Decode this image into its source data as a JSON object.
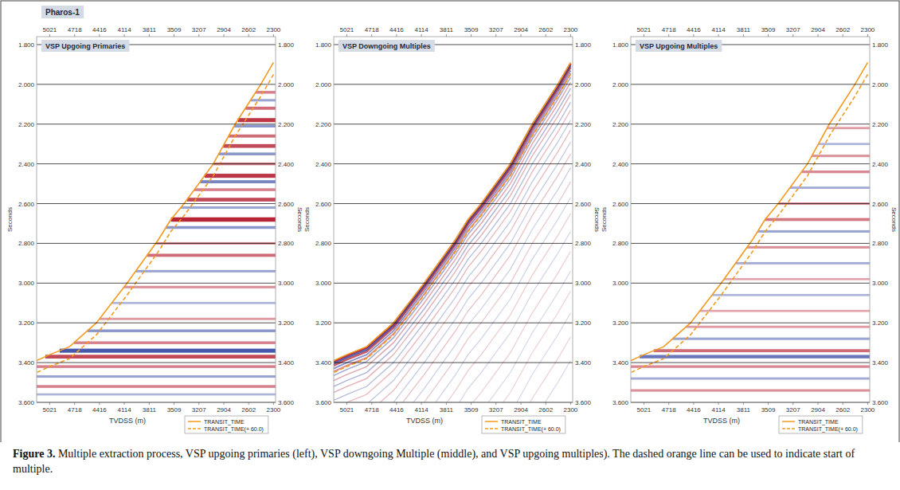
{
  "well_label": "Pharos-1",
  "caption": {
    "label": "Figure 3.",
    "text": " Multiple extraction process, VSP upgoing primaries (left), VSP downgoing Multiple (middle), and VSP upgoing multiples). The dashed orange line can be used to indicate start of multiple."
  },
  "chart_data": [
    {
      "type": "seismic",
      "title": "VSP Upgoing Primaries",
      "x_label": "TVDSS (m)",
      "y_label": "Seconds",
      "xlim": [
        5180,
        2275
      ],
      "xticks": [
        5021,
        4718,
        4416,
        4114,
        3811,
        3509,
        3207,
        2904,
        2602,
        2300
      ],
      "ylim": [
        1.76,
        3.6
      ],
      "yticks": [
        {
          "value": 1.8,
          "label": "1.800"
        },
        {
          "value": 2.0,
          "label": "2.000"
        },
        {
          "value": 2.2,
          "label": "2.200"
        },
        {
          "value": 2.4,
          "label": "2.400"
        },
        {
          "value": 2.6,
          "label": "2.600"
        },
        {
          "value": 2.8,
          "label": "2.800"
        },
        {
          "value": 3.0,
          "label": "3.000"
        },
        {
          "value": 3.2,
          "label": "3.200"
        },
        {
          "value": 3.4,
          "label": "3.400"
        },
        {
          "value": 3.6,
          "label": "3.600"
        }
      ],
      "grid": true,
      "legend": "bottom",
      "series": [
        {
          "name": "TRANSIT_TIME",
          "color": "#f39a1e",
          "line_style": "solid",
          "x": [
            2300,
            2455,
            2766,
            3032,
            3387,
            3547,
            3698,
            4080,
            4453,
            4780,
            5021,
            5180
          ],
          "values": [
            1.89,
            2.0,
            2.2,
            2.4,
            2.6,
            2.68,
            2.78,
            3.0,
            3.2,
            3.32,
            3.36,
            3.39
          ]
        },
        {
          "name": "TRANSIT_TIME(+ 60.0)",
          "color": "#f39a1e",
          "line_style": "dashed",
          "x": [
            2300,
            2455,
            2766,
            3032,
            3387,
            3547,
            3698,
            4080,
            4453,
            4780,
            5021,
            5180
          ],
          "values": [
            1.95,
            2.06,
            2.26,
            2.46,
            2.66,
            2.74,
            2.84,
            3.06,
            3.26,
            3.38,
            3.42,
            3.45
          ]
        }
      ],
      "reflections": [
        {
          "time": 2.04,
          "amplitude": 0.5
        },
        {
          "time": 2.08,
          "amplitude": -0.4
        },
        {
          "time": 2.12,
          "amplitude": 0.6
        },
        {
          "time": 2.18,
          "amplitude": 0.9
        },
        {
          "time": 2.21,
          "amplitude": -0.5
        },
        {
          "time": 2.26,
          "amplitude": 0.6
        },
        {
          "time": 2.31,
          "amplitude": 0.8
        },
        {
          "time": 2.35,
          "amplitude": -0.5
        },
        {
          "time": 2.4,
          "amplitude": 0.5
        },
        {
          "time": 2.46,
          "amplitude": 0.9
        },
        {
          "time": 2.49,
          "amplitude": -0.6
        },
        {
          "time": 2.53,
          "amplitude": 0.5
        },
        {
          "time": 2.58,
          "amplitude": 0.8
        },
        {
          "time": 2.62,
          "amplitude": -0.4
        },
        {
          "time": 2.68,
          "amplitude": 1.0
        },
        {
          "time": 2.72,
          "amplitude": -0.5
        },
        {
          "time": 2.8,
          "amplitude": 0.4
        },
        {
          "time": 2.86,
          "amplitude": 0.6
        },
        {
          "time": 2.94,
          "amplitude": -0.4
        },
        {
          "time": 3.02,
          "amplitude": 0.4
        },
        {
          "time": 3.1,
          "amplitude": -0.3
        },
        {
          "time": 3.18,
          "amplitude": 0.35
        },
        {
          "time": 3.24,
          "amplitude": -0.5
        },
        {
          "time": 3.3,
          "amplitude": 0.5
        },
        {
          "time": 3.34,
          "amplitude": -0.9
        },
        {
          "time": 3.37,
          "amplitude": 0.8
        },
        {
          "time": 3.42,
          "amplitude": 0.5
        },
        {
          "time": 3.47,
          "amplitude": -0.4
        },
        {
          "time": 3.52,
          "amplitude": 0.5
        },
        {
          "time": 3.56,
          "amplitude": -0.3
        }
      ]
    },
    {
      "type": "seismic",
      "title": "VSP Downgoing Multiples",
      "x_label": "TVDSS (m)",
      "y_label": "Seconds",
      "xlim": [
        5180,
        2275
      ],
      "xticks": [
        5021,
        4718,
        4416,
        4114,
        3811,
        3509,
        3207,
        2904,
        2602,
        2300
      ],
      "ylim": [
        1.76,
        3.6
      ],
      "yticks": [
        {
          "value": 1.8,
          "label": "1.800"
        },
        {
          "value": 2.0,
          "label": "2.000"
        },
        {
          "value": 2.2,
          "label": "2.200"
        },
        {
          "value": 2.4,
          "label": "2.400"
        },
        {
          "value": 2.6,
          "label": "2.600"
        },
        {
          "value": 2.8,
          "label": "2.800"
        },
        {
          "value": 3.0,
          "label": "3.000"
        },
        {
          "value": 3.2,
          "label": "3.200"
        },
        {
          "value": 3.4,
          "label": "3.400"
        },
        {
          "value": 3.6,
          "label": "3.600"
        }
      ],
      "grid": true,
      "legend": "bottom",
      "series": [
        {
          "name": "TRANSIT_TIME",
          "color": "#f39a1e",
          "line_style": "solid",
          "x": [
            2300,
            2455,
            2766,
            3032,
            3387,
            3547,
            3698,
            4080,
            4453,
            4780,
            5021,
            5180
          ],
          "values": [
            1.89,
            2.0,
            2.2,
            2.4,
            2.6,
            2.68,
            2.78,
            3.0,
            3.2,
            3.32,
            3.36,
            3.39
          ]
        },
        {
          "name": "TRANSIT_TIME(+ 60.0)",
          "color": "#f39a1e",
          "line_style": "dashed",
          "x": [
            2300,
            2455,
            2766,
            3032,
            3387,
            3547,
            3698,
            4080,
            4453,
            4780,
            5021,
            5180
          ],
          "values": [
            1.95,
            2.06,
            2.26,
            2.46,
            2.66,
            2.74,
            2.84,
            3.06,
            3.26,
            3.38,
            3.42,
            3.45
          ]
        }
      ],
      "multiples": [
        {
          "lag": 0.005,
          "amplitude": 0.9
        },
        {
          "lag": 0.015,
          "amplitude": -0.8
        },
        {
          "lag": 0.025,
          "amplitude": 0.7
        },
        {
          "lag": 0.04,
          "amplitude": -0.5
        },
        {
          "lag": 0.055,
          "amplitude": 0.45
        },
        {
          "lag": 0.075,
          "amplitude": -0.35
        },
        {
          "lag": 0.1,
          "amplitude": 0.3
        },
        {
          "lag": 0.13,
          "amplitude": -0.3
        },
        {
          "lag": 0.16,
          "amplitude": 0.25
        },
        {
          "lag": 0.2,
          "amplitude": -0.25
        },
        {
          "lag": 0.24,
          "amplitude": 0.22
        },
        {
          "lag": 0.29,
          "amplitude": -0.2
        },
        {
          "lag": 0.34,
          "amplitude": 0.2
        },
        {
          "lag": 0.4,
          "amplitude": -0.18
        },
        {
          "lag": 0.46,
          "amplitude": 0.18
        },
        {
          "lag": 0.53,
          "amplitude": -0.15
        },
        {
          "lag": 0.6,
          "amplitude": 0.15
        },
        {
          "lag": 0.68,
          "amplitude": -0.13
        },
        {
          "lag": 0.76,
          "amplitude": 0.13
        },
        {
          "lag": 0.85,
          "amplitude": -0.12
        },
        {
          "lag": 0.95,
          "amplitude": 0.12
        },
        {
          "lag": 1.05,
          "amplitude": -0.1
        },
        {
          "lag": 1.15,
          "amplitude": 0.1
        },
        {
          "lag": 1.26,
          "amplitude": -0.1
        },
        {
          "lag": 1.38,
          "amplitude": 0.1
        },
        {
          "lag": 1.5,
          "amplitude": -0.1
        }
      ]
    },
    {
      "type": "seismic",
      "title": "VSP Upgoing Multiples",
      "x_label": "TVDSS (m)",
      "y_label": "Seconds",
      "xlim": [
        5180,
        2275
      ],
      "xticks": [
        5021,
        4718,
        4416,
        4114,
        3811,
        3509,
        3207,
        2904,
        2602,
        2300
      ],
      "ylim": [
        1.76,
        3.6
      ],
      "yticks": [
        {
          "value": 1.8,
          "label": "1.800"
        },
        {
          "value": 2.0,
          "label": "2.000"
        },
        {
          "value": 2.2,
          "label": "2.200"
        },
        {
          "value": 2.4,
          "label": "2.400"
        },
        {
          "value": 2.6,
          "label": "2.600"
        },
        {
          "value": 2.8,
          "label": "2.800"
        },
        {
          "value": 3.0,
          "label": "3.000"
        },
        {
          "value": 3.2,
          "label": "3.200"
        },
        {
          "value": 3.4,
          "label": "3.400"
        },
        {
          "value": 3.6,
          "label": "3.600"
        }
      ],
      "grid": true,
      "legend": "bottom",
      "series": [
        {
          "name": "TRANSIT_TIME",
          "color": "#f39a1e",
          "line_style": "solid",
          "x": [
            2300,
            2455,
            2766,
            3032,
            3387,
            3547,
            3698,
            4080,
            4453,
            4780,
            5021,
            5180
          ],
          "values": [
            1.89,
            2.0,
            2.2,
            2.4,
            2.6,
            2.68,
            2.78,
            3.0,
            3.2,
            3.32,
            3.36,
            3.39
          ]
        },
        {
          "name": "TRANSIT_TIME(+ 60.0)",
          "color": "#f39a1e",
          "line_style": "dashed",
          "x": [
            2300,
            2455,
            2766,
            3032,
            3387,
            3547,
            3698,
            4080,
            4453,
            4780,
            5021,
            5180
          ],
          "values": [
            1.95,
            2.06,
            2.26,
            2.46,
            2.66,
            2.74,
            2.84,
            3.06,
            3.26,
            3.38,
            3.42,
            3.45
          ]
        }
      ],
      "reflections": [
        {
          "time": 2.22,
          "amplitude": 0.35
        },
        {
          "time": 2.3,
          "amplitude": -0.3
        },
        {
          "time": 2.36,
          "amplitude": 0.4
        },
        {
          "time": 2.44,
          "amplitude": 0.45
        },
        {
          "time": 2.52,
          "amplitude": -0.35
        },
        {
          "time": 2.6,
          "amplitude": 0.4
        },
        {
          "time": 2.68,
          "amplitude": 0.55
        },
        {
          "time": 2.74,
          "amplitude": -0.4
        },
        {
          "time": 2.82,
          "amplitude": 0.4
        },
        {
          "time": 2.9,
          "amplitude": -0.35
        },
        {
          "time": 2.98,
          "amplitude": 0.3
        },
        {
          "time": 3.06,
          "amplitude": -0.3
        },
        {
          "time": 3.14,
          "amplitude": 0.3
        },
        {
          "time": 3.22,
          "amplitude": 0.35
        },
        {
          "time": 3.28,
          "amplitude": -0.4
        },
        {
          "time": 3.34,
          "amplitude": 0.6
        },
        {
          "time": 3.37,
          "amplitude": -0.7
        },
        {
          "time": 3.42,
          "amplitude": 0.45
        },
        {
          "time": 3.48,
          "amplitude": -0.35
        },
        {
          "time": 3.54,
          "amplitude": 0.4
        }
      ]
    }
  ]
}
